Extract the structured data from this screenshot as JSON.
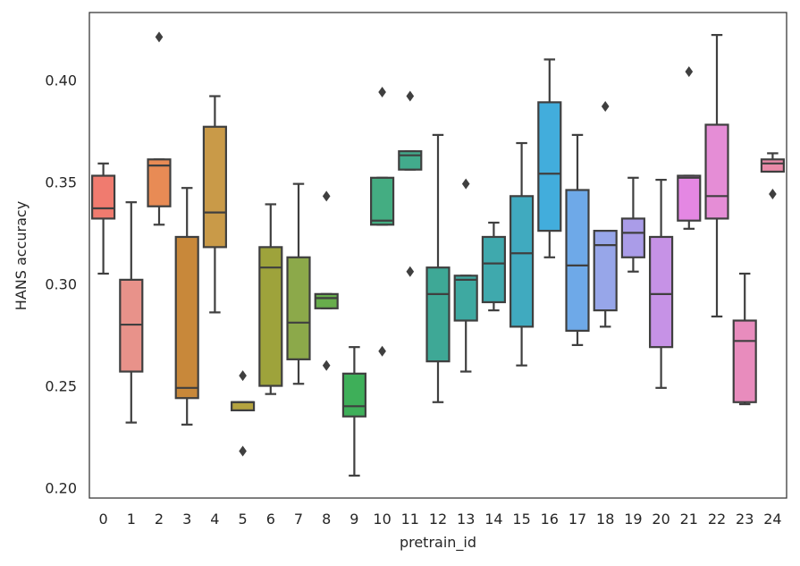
{
  "chart_data": {
    "type": "boxplot",
    "title": "",
    "xlabel": "pretrain_id",
    "ylabel": "HANS accuracy",
    "ylim": [
      0.195,
      0.433
    ],
    "yticks": [
      0.2,
      0.25,
      0.3,
      0.35,
      0.4
    ],
    "ytick_labels": [
      "0.20",
      "0.25",
      "0.30",
      "0.35",
      "0.40"
    ],
    "grid": false,
    "categories": [
      "0",
      "1",
      "2",
      "3",
      "4",
      "5",
      "6",
      "7",
      "8",
      "9",
      "10",
      "11",
      "12",
      "13",
      "14",
      "15",
      "16",
      "17",
      "18",
      "19",
      "20",
      "21",
      "22",
      "23",
      "24"
    ],
    "boxes": [
      {
        "id": "0",
        "color": "#f07b6f",
        "whisker_low": 0.305,
        "q1": 0.332,
        "median": 0.337,
        "q3": 0.353,
        "whisker_high": 0.359,
        "outliers": []
      },
      {
        "id": "1",
        "color": "#e8928a",
        "whisker_low": 0.232,
        "q1": 0.257,
        "median": 0.28,
        "q3": 0.302,
        "whisker_high": 0.34,
        "outliers": []
      },
      {
        "id": "2",
        "color": "#e88b55",
        "whisker_low": 0.329,
        "q1": 0.338,
        "median": 0.358,
        "q3": 0.361,
        "whisker_high": 0.361,
        "outliers": [
          0.421
        ]
      },
      {
        "id": "3",
        "color": "#c8883a",
        "whisker_low": 0.231,
        "q1": 0.244,
        "median": 0.249,
        "q3": 0.323,
        "whisker_high": 0.347,
        "outliers": []
      },
      {
        "id": "4",
        "color": "#c99a48",
        "whisker_low": 0.286,
        "q1": 0.318,
        "median": 0.335,
        "q3": 0.377,
        "whisker_high": 0.392,
        "outliers": []
      },
      {
        "id": "5",
        "color": "#b4a33f",
        "whisker_low": 0.238,
        "q1": 0.238,
        "median": 0.242,
        "q3": 0.242,
        "whisker_high": 0.242,
        "outliers": [
          0.255,
          0.218
        ]
      },
      {
        "id": "6",
        "color": "#9ea33b",
        "whisker_low": 0.246,
        "q1": 0.25,
        "median": 0.308,
        "q3": 0.318,
        "whisker_high": 0.339,
        "outliers": []
      },
      {
        "id": "7",
        "color": "#8ca94a",
        "whisker_low": 0.251,
        "q1": 0.263,
        "median": 0.281,
        "q3": 0.313,
        "whisker_high": 0.349,
        "outliers": []
      },
      {
        "id": "8",
        "color": "#68ad4c",
        "whisker_low": 0.288,
        "q1": 0.288,
        "median": 0.293,
        "q3": 0.295,
        "whisker_high": 0.295,
        "outliers": [
          0.343,
          0.26
        ]
      },
      {
        "id": "9",
        "color": "#3eaf59",
        "whisker_low": 0.206,
        "q1": 0.235,
        "median": 0.24,
        "q3": 0.256,
        "whisker_high": 0.269,
        "outliers": []
      },
      {
        "id": "10",
        "color": "#44ad82",
        "whisker_low": 0.329,
        "q1": 0.329,
        "median": 0.331,
        "q3": 0.352,
        "whisker_high": 0.352,
        "outliers": [
          0.394,
          0.267
        ]
      },
      {
        "id": "11",
        "color": "#42ab8c",
        "whisker_low": 0.356,
        "q1": 0.356,
        "median": 0.363,
        "q3": 0.365,
        "whisker_high": 0.365,
        "outliers": [
          0.392,
          0.306
        ]
      },
      {
        "id": "12",
        "color": "#3ea896",
        "whisker_low": 0.242,
        "q1": 0.262,
        "median": 0.295,
        "q3": 0.308,
        "whisker_high": 0.373,
        "outliers": []
      },
      {
        "id": "13",
        "color": "#3ea9a1",
        "whisker_low": 0.257,
        "q1": 0.282,
        "median": 0.302,
        "q3": 0.304,
        "whisker_high": 0.304,
        "outliers": [
          0.349
        ]
      },
      {
        "id": "14",
        "color": "#3fa9ad",
        "whisker_low": 0.287,
        "q1": 0.291,
        "median": 0.31,
        "q3": 0.323,
        "whisker_high": 0.33,
        "outliers": []
      },
      {
        "id": "15",
        "color": "#40aabf",
        "whisker_low": 0.26,
        "q1": 0.279,
        "median": 0.315,
        "q3": 0.343,
        "whisker_high": 0.369,
        "outliers": []
      },
      {
        "id": "16",
        "color": "#42addc",
        "whisker_low": 0.313,
        "q1": 0.326,
        "median": 0.354,
        "q3": 0.389,
        "whisker_high": 0.41,
        "outliers": []
      },
      {
        "id": "17",
        "color": "#6ea9e8",
        "whisker_low": 0.27,
        "q1": 0.277,
        "median": 0.309,
        "q3": 0.346,
        "whisker_high": 0.373,
        "outliers": []
      },
      {
        "id": "18",
        "color": "#97a6e9",
        "whisker_low": 0.279,
        "q1": 0.287,
        "median": 0.319,
        "q3": 0.326,
        "whisker_high": 0.326,
        "outliers": [
          0.387
        ]
      },
      {
        "id": "19",
        "color": "#aa9ce8",
        "whisker_low": 0.306,
        "q1": 0.313,
        "median": 0.325,
        "q3": 0.332,
        "whisker_high": 0.352,
        "outliers": []
      },
      {
        "id": "20",
        "color": "#c692e6",
        "whisker_low": 0.249,
        "q1": 0.269,
        "median": 0.295,
        "q3": 0.323,
        "whisker_high": 0.351,
        "outliers": []
      },
      {
        "id": "21",
        "color": "#e487e3",
        "whisker_low": 0.327,
        "q1": 0.331,
        "median": 0.352,
        "q3": 0.353,
        "whisker_high": 0.353,
        "outliers": [
          0.404
        ]
      },
      {
        "id": "22",
        "color": "#e58dd6",
        "whisker_low": 0.284,
        "q1": 0.332,
        "median": 0.343,
        "q3": 0.378,
        "whisker_high": 0.422,
        "outliers": []
      },
      {
        "id": "23",
        "color": "#e88cbd",
        "whisker_low": 0.241,
        "q1": 0.242,
        "median": 0.272,
        "q3": 0.282,
        "whisker_high": 0.305,
        "outliers": []
      },
      {
        "id": "24",
        "color": "#e98aa8",
        "whisker_low": 0.355,
        "q1": 0.355,
        "median": 0.359,
        "q3": 0.361,
        "whisker_high": 0.364,
        "outliers": [
          0.344
        ]
      }
    ]
  }
}
